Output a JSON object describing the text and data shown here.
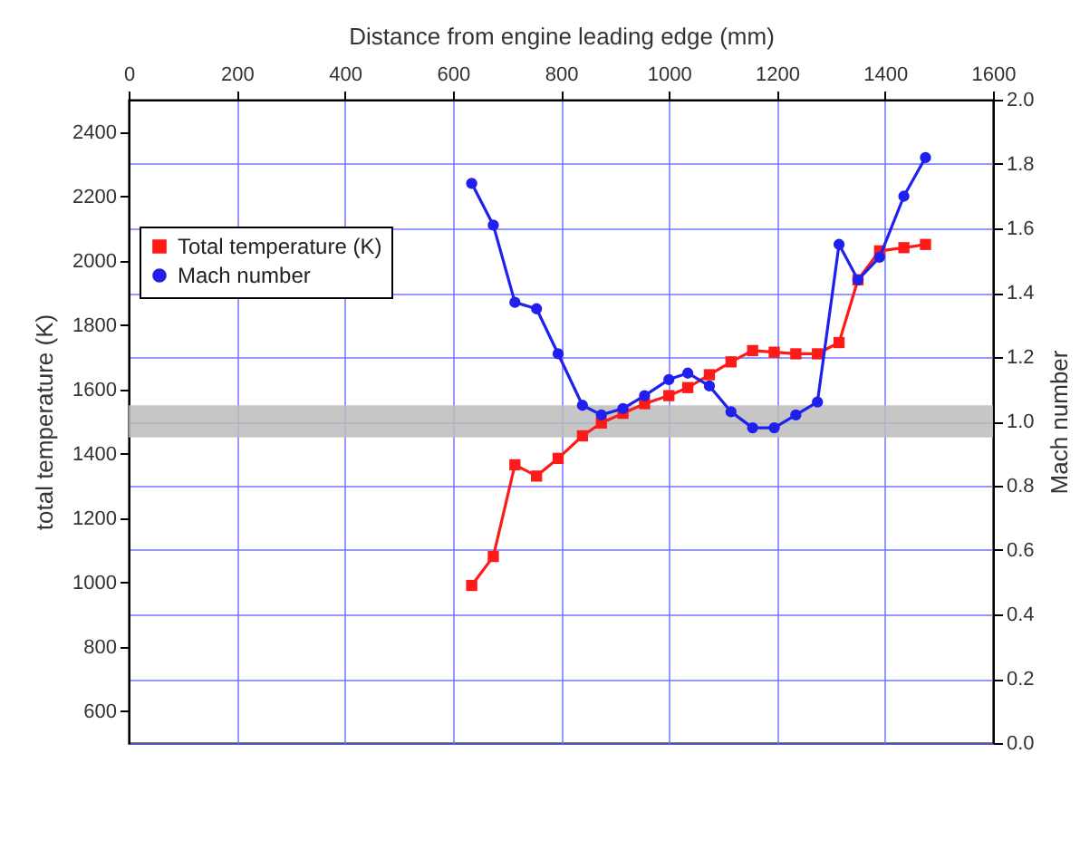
{
  "chart_data": {
    "type": "line",
    "xlabel": "Distance from engine leading edge (mm)",
    "ylabel": "total temperature (K)",
    "y2label": "Mach number",
    "xlim": [
      0,
      1600
    ],
    "xticks": [
      0,
      200,
      400,
      600,
      800,
      1000,
      1200,
      1400,
      1600
    ],
    "ylim": [
      500,
      2500
    ],
    "yticks": [
      600,
      800,
      1000,
      1200,
      1400,
      1600,
      1800,
      2000,
      2200,
      2400
    ],
    "y2lim": [
      0,
      2
    ],
    "y2ticks": [
      {
        "value": 0,
        "label": "0.0"
      },
      0.2,
      0.4,
      0.6,
      0.8,
      {
        "value": 1,
        "label": "1.0"
      },
      1.2,
      1.4,
      1.6,
      1.8,
      {
        "value": 2,
        "label": "2.0"
      }
    ],
    "grid": true,
    "legend": "top left",
    "line_style": "solid",
    "bands": [
      {
        "axis": "y2",
        "from": 0.95,
        "to": 1.05,
        "color": "#bcbcbc"
      }
    ],
    "x": [
      635,
      675,
      715,
      755,
      795,
      840,
      875,
      915,
      955,
      1000,
      1035,
      1075,
      1115,
      1155,
      1195,
      1235,
      1275,
      1315,
      1350,
      1390,
      1435,
      1475
    ],
    "series": [
      {
        "name": "Total temperature (K)",
        "color": "#ff1a1a",
        "marker": "square",
        "values": [
          990,
          1080,
          1365,
          1330,
          1385,
          1455,
          1495,
          1525,
          1555,
          1580,
          1605,
          1645,
          1685,
          1720,
          1715,
          1710,
          1710,
          1745,
          1940,
          2030,
          2040,
          2050
        ]
      },
      {
        "name": "Mach number",
        "color": "#2020ee",
        "marker": "circle",
        "axis": "y2",
        "values": [
          1.74,
          1.61,
          1.37,
          1.35,
          1.21,
          1.05,
          1.02,
          1.04,
          1.08,
          1.13,
          1.15,
          1.11,
          1.03,
          0.98,
          0.98,
          1.02,
          1.06,
          1.55,
          1.44,
          1.51,
          1.7,
          1.82
        ]
      }
    ]
  }
}
